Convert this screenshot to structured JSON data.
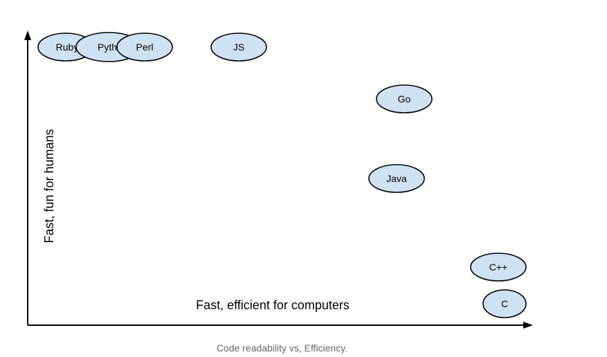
{
  "diagram": {
    "y_axis_label": "Fast, fun for humans",
    "x_axis_label": "Fast, efficient for computers",
    "nodes": [
      {
        "id": "ruby",
        "label": "Ruby"
      },
      {
        "id": "python",
        "label": "Pyth"
      },
      {
        "id": "perl",
        "label": "Perl"
      },
      {
        "id": "js",
        "label": "JS"
      },
      {
        "id": "go",
        "label": "Go"
      },
      {
        "id": "java",
        "label": "Java"
      },
      {
        "id": "cpp",
        "label": "C++"
      },
      {
        "id": "c",
        "label": "C"
      }
    ]
  },
  "caption": "Code readability vs, Efficiency.",
  "colors": {
    "bubble_fill": "#cfe2f3",
    "bubble_stroke": "#000000",
    "caption_text": "#666666"
  }
}
